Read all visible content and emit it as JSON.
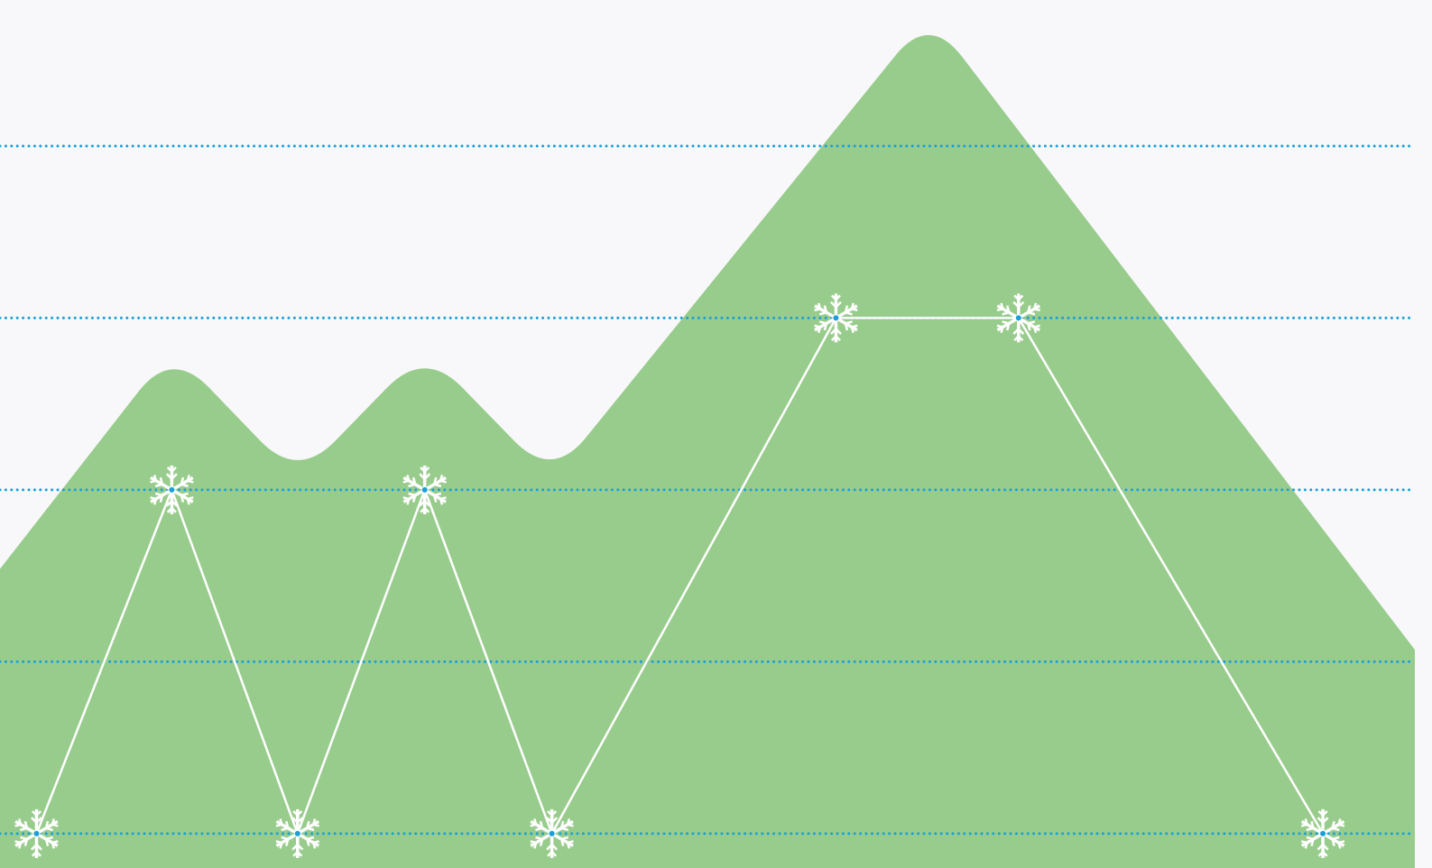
{
  "chart_data": {
    "type": "line",
    "xlim": [
      -0.27,
      10.19
    ],
    "ylim": [
      -0.2,
      4.85
    ],
    "yticks": [
      0,
      1,
      2,
      3,
      4
    ],
    "grid": true,
    "grid_color": "#1a9fd8",
    "background": {
      "type": "area",
      "color": "#98cc8c",
      "x": [
        -0.27,
        1,
        1.93,
        2.87,
        3.81,
        6.6,
        10.19
      ],
      "values": [
        1.54,
        2.82,
        2.06,
        2.82,
        2.06,
        4.77,
        1.07
      ]
    },
    "series": [
      {
        "color": "#ffffff",
        "x": [
          0,
          1,
          1.93,
          2.87,
          3.81,
          5.91,
          7.26,
          9.51
        ],
        "values": [
          0,
          2,
          0,
          2,
          0,
          3,
          3,
          0
        ]
      }
    ]
  }
}
